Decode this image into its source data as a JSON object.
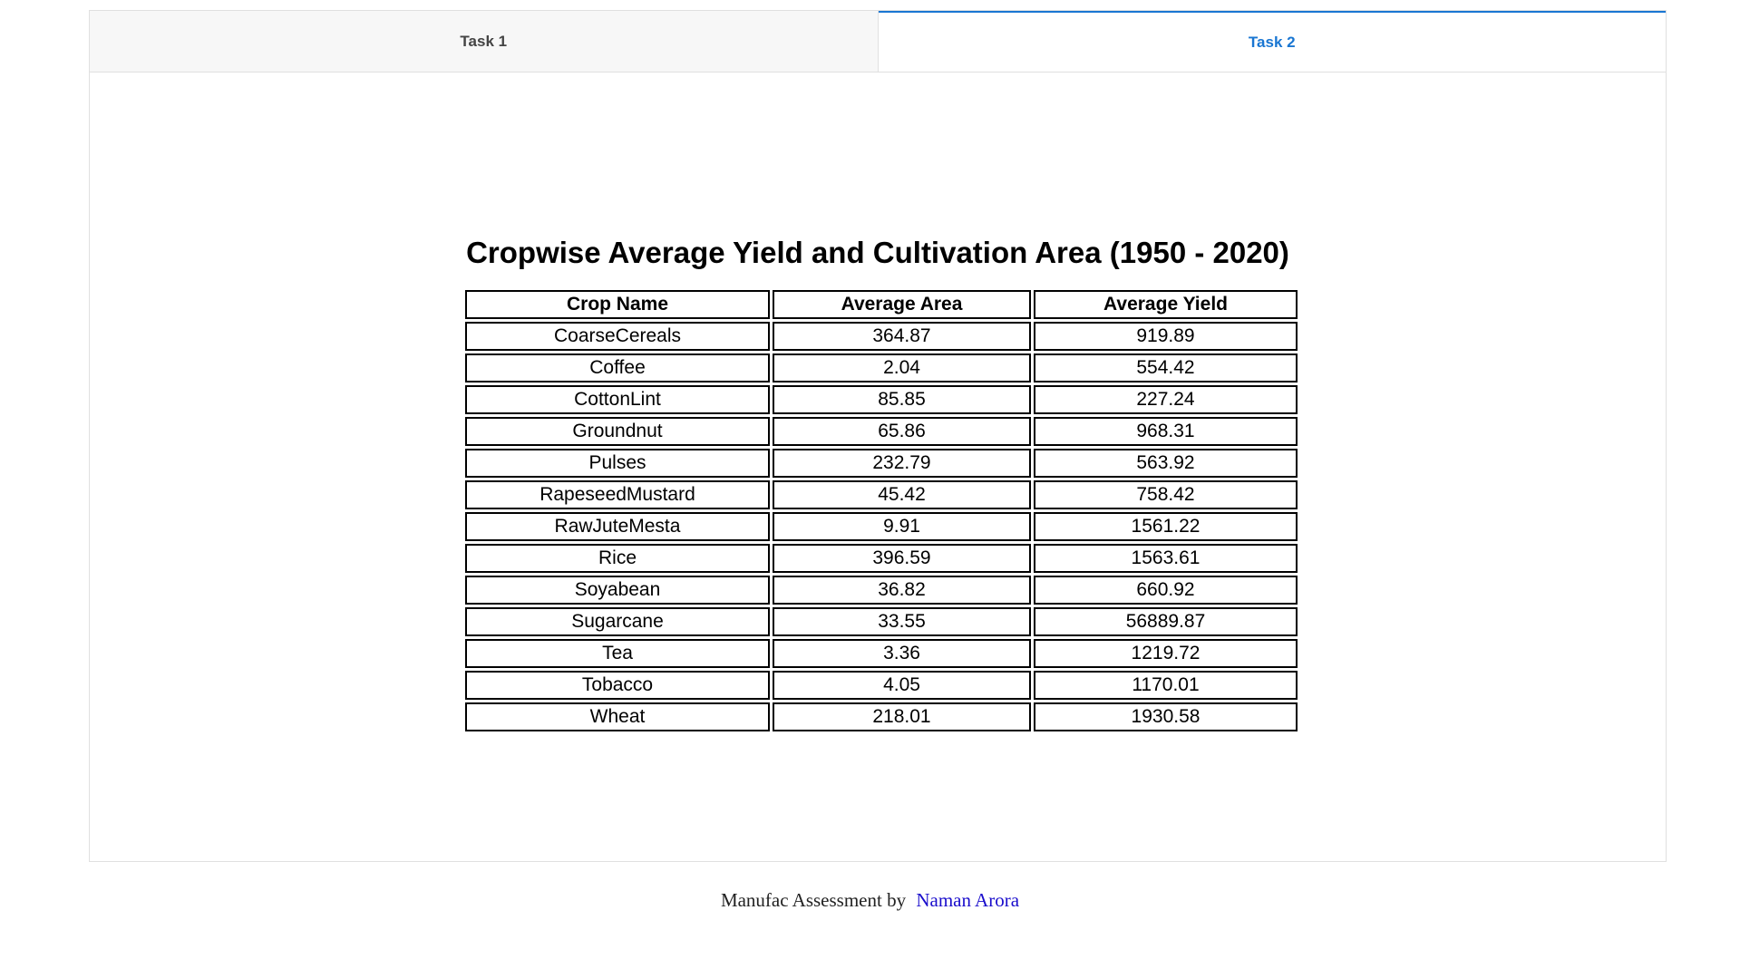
{
  "tabs": [
    {
      "label": "Task 1",
      "active": false
    },
    {
      "label": "Task 2",
      "active": true
    }
  ],
  "colors": {
    "accent": "#1976d2",
    "link": "#1a0dcc"
  },
  "table": {
    "title": "Cropwise Average Yield and Cultivation Area (1950 - 2020)",
    "headers": [
      "Crop Name",
      "Average Area",
      "Average Yield"
    ],
    "rows": [
      [
        "CoarseCereals",
        "364.87",
        "919.89"
      ],
      [
        "Coffee",
        "2.04",
        "554.42"
      ],
      [
        "CottonLint",
        "85.85",
        "227.24"
      ],
      [
        "Groundnut",
        "65.86",
        "968.31"
      ],
      [
        "Pulses",
        "232.79",
        "563.92"
      ],
      [
        "RapeseedMustard",
        "45.42",
        "758.42"
      ],
      [
        "RawJuteMesta",
        "9.91",
        "1561.22"
      ],
      [
        "Rice",
        "396.59",
        "1563.61"
      ],
      [
        "Soyabean",
        "36.82",
        "660.92"
      ],
      [
        "Sugarcane",
        "33.55",
        "56889.87"
      ],
      [
        "Tea",
        "3.36",
        "1219.72"
      ],
      [
        "Tobacco",
        "4.05",
        "1170.01"
      ],
      [
        "Wheat",
        "218.01",
        "1930.58"
      ]
    ]
  },
  "footer": {
    "text": "Manufac Assessment by",
    "link_label": "Naman Arora"
  }
}
